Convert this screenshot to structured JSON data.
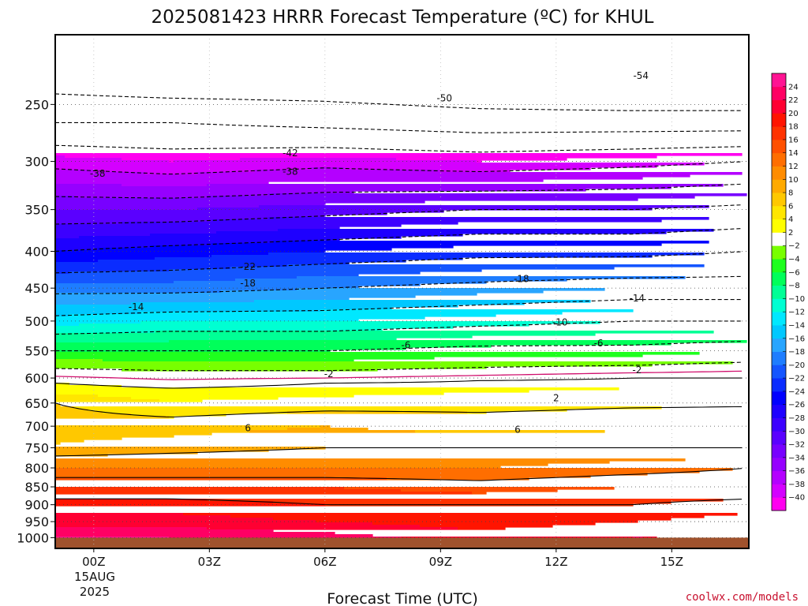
{
  "chart_data": {
    "type": "heatmap",
    "title": "2025081423 HRRR Forecast Temperature (ºC) for KHUL",
    "xlabel": "Forecast Time (UTC)",
    "ylabel": "",
    "x_ticks": [
      {
        "hour": 0,
        "label": "00Z"
      },
      {
        "hour": 3,
        "label": "03Z"
      },
      {
        "hour": 6,
        "label": "06Z"
      },
      {
        "hour": 9,
        "label": "09Z"
      },
      {
        "hour": 12,
        "label": "12Z"
      },
      {
        "hour": 15,
        "label": "15Z"
      }
    ],
    "x_date_label": "15AUG",
    "x_year_label": "2025",
    "xlim_hours": [
      -1,
      17
    ],
    "y_axis": "pressure (hPa), log scale, inverted",
    "ylim": [
      1035,
      200
    ],
    "y_ticks": [
      250,
      300,
      350,
      400,
      450,
      500,
      550,
      600,
      650,
      700,
      750,
      800,
      850,
      900,
      950,
      1000
    ],
    "grid": true,
    "surface_pressure": 1000,
    "color_levels": [
      -40,
      -38,
      -36,
      -34,
      -32,
      -30,
      -28,
      -26,
      -24,
      -22,
      -20,
      -18,
      -16,
      -14,
      -12,
      -10,
      -8,
      -6,
      -4,
      -2,
      2,
      4,
      6,
      8,
      10,
      12,
      14,
      16,
      18,
      20,
      22,
      24
    ],
    "colorbar_colors": [
      "#ff00f0",
      "#d400ff",
      "#b400ff",
      "#9600ff",
      "#7800ff",
      "#5a00ff",
      "#3c00ff",
      "#1e00ff",
      "#0000ff",
      "#0a2cff",
      "#1455ff",
      "#1e7dff",
      "#28a5ff",
      "#00c8ff",
      "#00e8ff",
      "#00ffd2",
      "#00ff96",
      "#00ff5a",
      "#1eff1e",
      "#78ff00",
      "#ffffff",
      "#ffff00",
      "#ffe600",
      "#ffc800",
      "#ffaa00",
      "#ff8c00",
      "#ff6e00",
      "#ff5000",
      "#ff3200",
      "#ff1400",
      "#ff0032",
      "#ff0064",
      "#ff1493"
    ],
    "profiles": [
      {
        "hour": -1,
        "points": [
          [
            230,
            -52
          ],
          [
            265,
            -46
          ],
          [
            300,
            -39
          ],
          [
            350,
            -32
          ],
          [
            400,
            -26
          ],
          [
            450,
            -19
          ],
          [
            500,
            -13
          ],
          [
            550,
            -6
          ],
          [
            590,
            -1
          ],
          [
            610,
            2
          ],
          [
            650,
            6
          ],
          [
            700,
            7
          ],
          [
            740,
            8
          ],
          [
            800,
            12
          ],
          [
            850,
            16
          ],
          [
            900,
            19
          ],
          [
            950,
            21
          ],
          [
            1000,
            24
          ]
        ]
      },
      {
        "hour": 2,
        "points": [
          [
            230,
            -53
          ],
          [
            265,
            -46
          ],
          [
            300,
            -40
          ],
          [
            350,
            -32
          ],
          [
            400,
            -25
          ],
          [
            450,
            -19
          ],
          [
            500,
            -12
          ],
          [
            550,
            -6
          ],
          [
            595,
            -1
          ],
          [
            620,
            2
          ],
          [
            660,
            5
          ],
          [
            700,
            7
          ],
          [
            745,
            9
          ],
          [
            800,
            12
          ],
          [
            850,
            16
          ],
          [
            900,
            19
          ],
          [
            950,
            21
          ],
          [
            1000,
            24
          ]
        ]
      },
      {
        "hour": 6,
        "points": [
          [
            230,
            -53
          ],
          [
            265,
            -47
          ],
          [
            300,
            -39
          ],
          [
            350,
            -31
          ],
          [
            400,
            -24
          ],
          [
            450,
            -18
          ],
          [
            500,
            -12
          ],
          [
            550,
            -6
          ],
          [
            595,
            -1
          ],
          [
            610,
            2
          ],
          [
            650,
            5
          ],
          [
            700,
            8
          ],
          [
            750,
            10
          ],
          [
            800,
            12
          ],
          [
            850,
            16
          ],
          [
            900,
            18
          ],
          [
            950,
            20
          ],
          [
            1000,
            23
          ]
        ]
      },
      {
        "hour": 10,
        "points": [
          [
            230,
            -54
          ],
          [
            265,
            -48
          ],
          [
            300,
            -40
          ],
          [
            350,
            -30
          ],
          [
            400,
            -23
          ],
          [
            450,
            -17
          ],
          [
            500,
            -11
          ],
          [
            550,
            -5
          ],
          [
            590,
            -1
          ],
          [
            605,
            2
          ],
          [
            640,
            5
          ],
          [
            700,
            7
          ],
          [
            750,
            10
          ],
          [
            800,
            12
          ],
          [
            850,
            15
          ],
          [
            900,
            18
          ],
          [
            950,
            19
          ],
          [
            1000,
            21
          ]
        ]
      },
      {
        "hour": 14,
        "points": [
          [
            230,
            -55
          ],
          [
            265,
            -48
          ],
          [
            300,
            -39
          ],
          [
            350,
            -30
          ],
          [
            400,
            -23
          ],
          [
            450,
            -16
          ],
          [
            500,
            -10
          ],
          [
            550,
            -5
          ],
          [
            585,
            -1
          ],
          [
            600,
            2
          ],
          [
            630,
            5
          ],
          [
            690,
            7
          ],
          [
            750,
            10
          ],
          [
            800,
            13
          ],
          [
            850,
            16
          ],
          [
            900,
            18
          ],
          [
            950,
            20
          ],
          [
            1000,
            22
          ]
        ]
      },
      {
        "hour": 17,
        "points": [
          [
            230,
            -55
          ],
          [
            265,
            -48
          ],
          [
            300,
            -38
          ],
          [
            350,
            -29
          ],
          [
            400,
            -22
          ],
          [
            450,
            -16
          ],
          [
            500,
            -10
          ],
          [
            550,
            -4
          ],
          [
            580,
            -1
          ],
          [
            600,
            2
          ],
          [
            625,
            5
          ],
          [
            690,
            7
          ],
          [
            750,
            10
          ],
          [
            800,
            14
          ],
          [
            850,
            16
          ],
          [
            900,
            19
          ],
          [
            950,
            21
          ],
          [
            1000,
            22
          ]
        ]
      }
    ],
    "contour_labels": [
      {
        "text": "-54",
        "hour": 14.2,
        "p": 228
      },
      {
        "text": "-50",
        "hour": 9.1,
        "p": 245
      },
      {
        "text": "-42",
        "hour": 5.1,
        "p": 292
      },
      {
        "text": "-38",
        "hour": 0.1,
        "p": 312
      },
      {
        "text": "-38",
        "hour": 5.1,
        "p": 310
      },
      {
        "text": "-22",
        "hour": 4.0,
        "p": 420
      },
      {
        "text": "-18",
        "hour": 4.0,
        "p": 443
      },
      {
        "text": "-18",
        "hour": 11.1,
        "p": 437
      },
      {
        "text": "-14",
        "hour": 1.1,
        "p": 478
      },
      {
        "text": "-14",
        "hour": 14.1,
        "p": 465
      },
      {
        "text": "-10",
        "hour": 12.1,
        "p": 502
      },
      {
        "text": "-6",
        "hour": 8.1,
        "p": 540
      },
      {
        "text": "-6",
        "hour": 13.1,
        "p": 537
      },
      {
        "text": "-2",
        "hour": 6.1,
        "p": 592
      },
      {
        "text": "-2",
        "hour": 14.1,
        "p": 585
      },
      {
        "text": "2",
        "hour": 12.0,
        "p": 640
      },
      {
        "text": "6",
        "hour": 4.0,
        "p": 704
      },
      {
        "text": "6",
        "hour": 11.0,
        "p": 708
      }
    ]
  },
  "credit": "coolwx.com/models"
}
